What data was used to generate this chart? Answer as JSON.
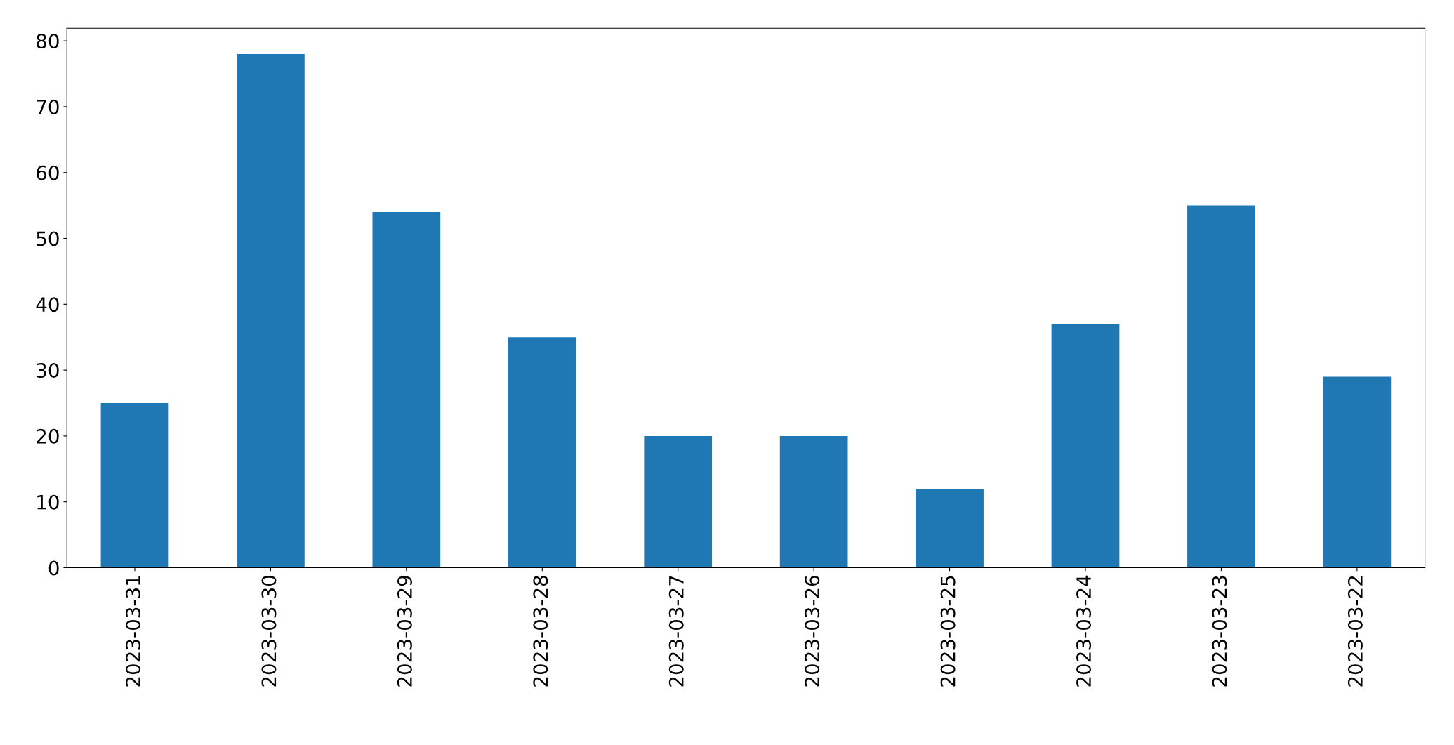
{
  "chart_data": {
    "type": "bar",
    "categories": [
      "2023-03-31",
      "2023-03-30",
      "2023-03-29",
      "2023-03-28",
      "2023-03-27",
      "2023-03-26",
      "2023-03-25",
      "2023-03-24",
      "2023-03-23",
      "2023-03-22"
    ],
    "values": [
      25,
      78,
      54,
      35,
      20,
      20,
      12,
      37,
      55,
      29
    ],
    "color": "#1f77b4",
    "ylim": [
      0,
      81.9
    ],
    "yticks": [
      0,
      10,
      20,
      30,
      40,
      50,
      60,
      70,
      80
    ],
    "grid": false,
    "legend": false
  }
}
